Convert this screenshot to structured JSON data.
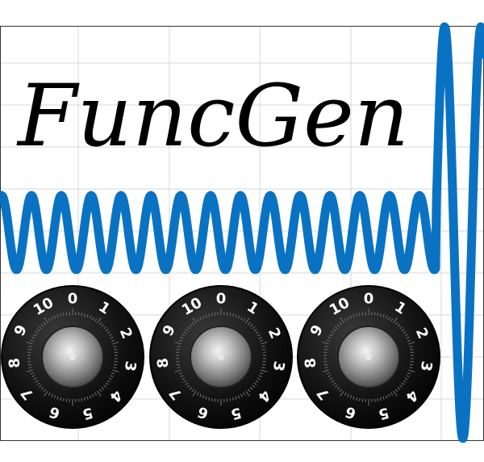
{
  "logo": {
    "title": "FuncGen",
    "title_color": "#000000"
  },
  "waveform": {
    "color": "#0a72c2",
    "description_hint": "sine-wave",
    "grid_on": true
  },
  "knobs": [
    {
      "name": "knob-1",
      "labels": [
        "10",
        "0",
        "1",
        "2",
        "3",
        "4",
        "5",
        "6",
        "7",
        "8",
        "9"
      ]
    },
    {
      "name": "knob-2",
      "labels": [
        "10",
        "0",
        "1",
        "2",
        "3",
        "4",
        "5",
        "6",
        "7",
        "8",
        "9"
      ]
    },
    {
      "name": "knob-3",
      "labels": [
        "10",
        "0",
        "1",
        "2",
        "3",
        "4",
        "5",
        "6",
        "7",
        "8",
        "9"
      ]
    }
  ],
  "colors": {
    "wave": "#0a72c2",
    "grid": "#cfcfcf",
    "knob_body": "#111111",
    "knob_cap": "#9a9a9a"
  }
}
